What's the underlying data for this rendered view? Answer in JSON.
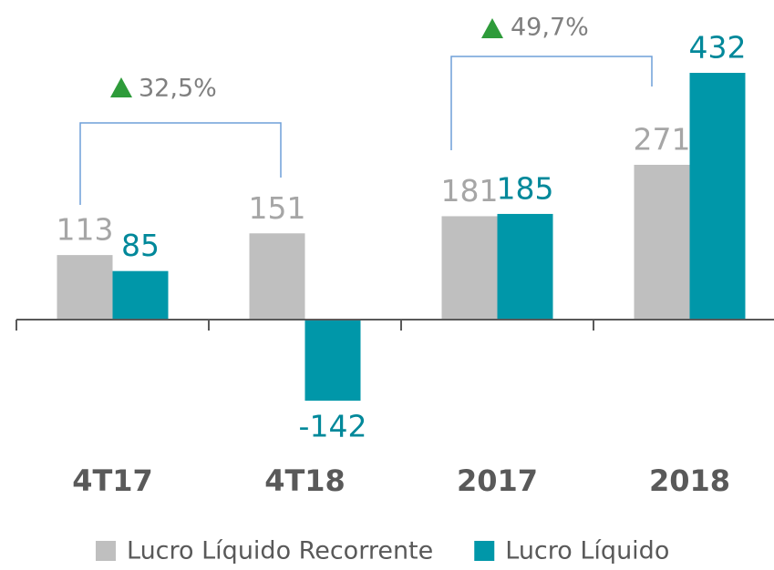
{
  "chart_data": {
    "type": "bar",
    "categories": [
      "4T17",
      "4T18",
      "2017",
      "2018"
    ],
    "series": [
      {
        "name": "Lucro Líquido Recorrente",
        "color": "#bfbfbf",
        "label_color": "#a6a6a6",
        "values": [
          113,
          151,
          181,
          271
        ]
      },
      {
        "name": "Lucro Líquido",
        "color": "#0097a9",
        "label_color": "#00889a",
        "values": [
          85,
          -142,
          185,
          432
        ]
      }
    ],
    "annotations": [
      "32,5%",
      "49,7%"
    ]
  }
}
